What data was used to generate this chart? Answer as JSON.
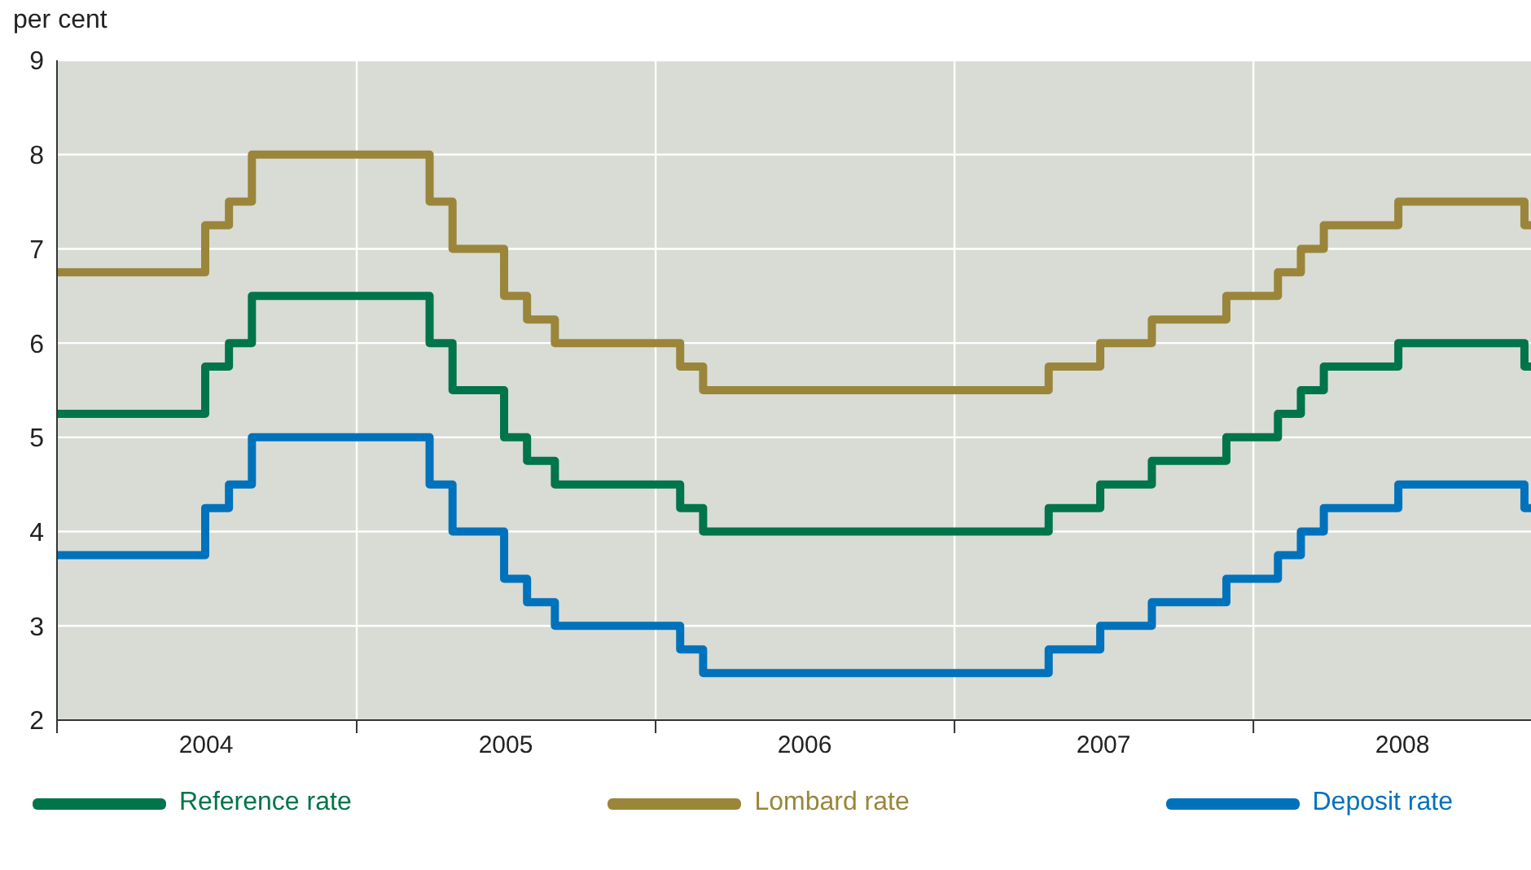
{
  "chart_data": {
    "type": "step",
    "ylabel": "per cent",
    "x": [
      "2004-01-01",
      "2004-06-30",
      "2004-07-29",
      "2004-08-26",
      "2005-03-31",
      "2005-04-28",
      "2005-06-30",
      "2005-07-28",
      "2005-08-31",
      "2006-01-31",
      "2006-02-28",
      "2007-04-26",
      "2007-06-28",
      "2007-08-30",
      "2007-11-29",
      "2008-01-31",
      "2008-02-28",
      "2008-03-27",
      "2008-06-26",
      "2008-11-27",
      "2008-12-05"
    ],
    "series": [
      {
        "name": "Reference rate",
        "color": "#00744a",
        "values": [
          5.25,
          5.75,
          6.0,
          6.5,
          6.0,
          5.5,
          5.0,
          4.75,
          4.5,
          4.25,
          4.0,
          4.25,
          4.5,
          4.75,
          5.0,
          5.25,
          5.5,
          5.75,
          6.0,
          5.75,
          5.75
        ]
      },
      {
        "name": "Lombard rate",
        "color": "#9a853a",
        "values": [
          6.75,
          7.25,
          7.5,
          8.0,
          7.5,
          7.0,
          6.5,
          6.25,
          6.0,
          5.75,
          5.5,
          5.75,
          6.0,
          6.25,
          6.5,
          6.75,
          7.0,
          7.25,
          7.5,
          7.25,
          7.25
        ]
      },
      {
        "name": "Deposit rate",
        "color": "#0072bb",
        "values": [
          3.75,
          4.25,
          4.5,
          5.0,
          4.5,
          4.0,
          3.5,
          3.25,
          3.0,
          2.75,
          2.5,
          2.75,
          3.0,
          3.25,
          3.5,
          3.75,
          4.0,
          4.25,
          4.5,
          4.25,
          4.25
        ]
      }
    ],
    "xlim": [
      "2004-01-01",
      "2008-12-05"
    ],
    "xticks": [
      {
        "value": "2004-01-01",
        "label": null
      },
      {
        "value": "2004-07-01",
        "label": "2004"
      },
      {
        "value": "2005-01-01",
        "label": null
      },
      {
        "value": "2005-07-02",
        "label": "2005"
      },
      {
        "value": "2006-01-01",
        "label": null
      },
      {
        "value": "2006-07-02",
        "label": "2006"
      },
      {
        "value": "2007-01-01",
        "label": null
      },
      {
        "value": "2007-07-02",
        "label": "2007"
      },
      {
        "value": "2008-01-01",
        "label": null
      },
      {
        "value": "2008-07-01",
        "label": "2008"
      }
    ],
    "ylim": [
      2,
      9
    ],
    "yticks": [
      2,
      3,
      4,
      5,
      6,
      7,
      8,
      9
    ],
    "grid": true,
    "legend": "bottom",
    "line_style": "solid",
    "marker": "none"
  }
}
